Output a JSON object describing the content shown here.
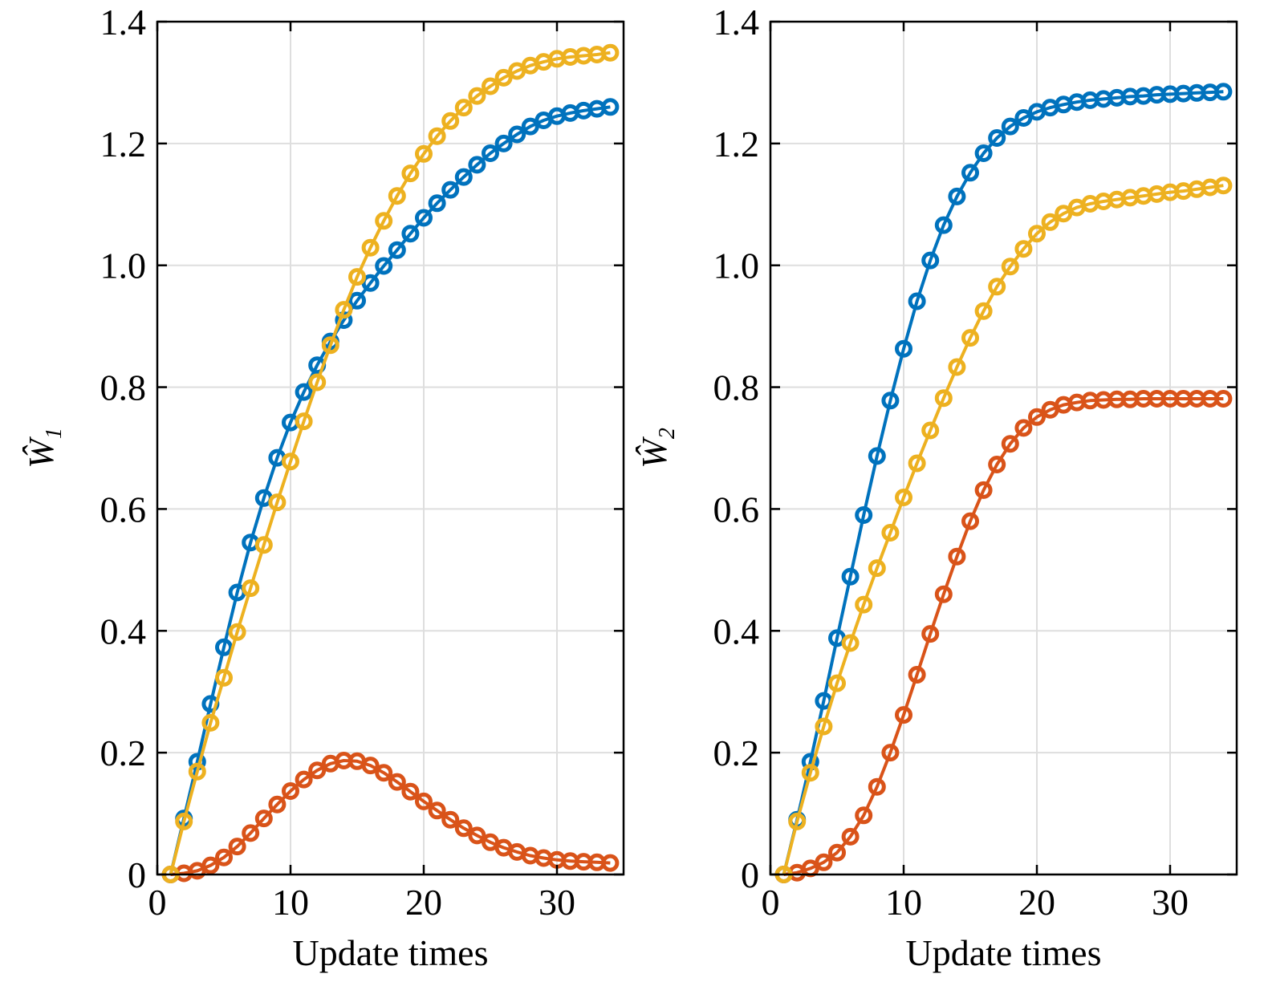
{
  "chart_data": [
    {
      "type": "line",
      "xlabel": "Update times",
      "ylabel": {
        "symbol": "Ŵ",
        "subscript": "1"
      },
      "xlim": [
        0,
        35
      ],
      "ylim": [
        0,
        1.4
      ],
      "xticks": [
        "0",
        "10",
        "20",
        "30"
      ],
      "yticks": [
        "0",
        "0.2",
        "0.4",
        "0.6",
        "0.8",
        "1.0",
        "1.2",
        "1.4"
      ],
      "grid": true,
      "markers": "open-circle",
      "series": [
        {
          "color": "#0072BD",
          "x": [
            1,
            2,
            3,
            4,
            5,
            6,
            7,
            8,
            9,
            10,
            11,
            12,
            13,
            14,
            15,
            16,
            17,
            18,
            19,
            20,
            21,
            22,
            23,
            24,
            25,
            26,
            27,
            28,
            29,
            30,
            31,
            32,
            33,
            34
          ],
          "values": [
            0,
            0.092,
            0.185,
            0.28,
            0.373,
            0.463,
            0.545,
            0.618,
            0.684,
            0.742,
            0.792,
            0.836,
            0.875,
            0.91,
            0.942,
            0.971,
            0.999,
            1.025,
            1.052,
            1.078,
            1.102,
            1.124,
            1.145,
            1.165,
            1.184,
            1.2,
            1.215,
            1.228,
            1.238,
            1.245,
            1.25,
            1.254,
            1.257,
            1.26
          ]
        },
        {
          "color": "#D95319",
          "x": [
            1,
            2,
            3,
            4,
            5,
            6,
            7,
            8,
            9,
            10,
            11,
            12,
            13,
            14,
            15,
            16,
            17,
            18,
            19,
            20,
            21,
            22,
            23,
            24,
            25,
            26,
            27,
            28,
            29,
            30,
            31,
            32,
            33,
            34
          ],
          "values": [
            0,
            0.002,
            0.006,
            0.015,
            0.028,
            0.046,
            0.068,
            0.092,
            0.115,
            0.137,
            0.156,
            0.171,
            0.182,
            0.187,
            0.186,
            0.179,
            0.167,
            0.152,
            0.136,
            0.12,
            0.105,
            0.09,
            0.076,
            0.064,
            0.053,
            0.044,
            0.037,
            0.031,
            0.027,
            0.024,
            0.022,
            0.021,
            0.02,
            0.019
          ]
        },
        {
          "color": "#EDB120",
          "x": [
            1,
            2,
            3,
            4,
            5,
            6,
            7,
            8,
            9,
            10,
            11,
            12,
            13,
            14,
            15,
            16,
            17,
            18,
            19,
            20,
            21,
            22,
            23,
            24,
            25,
            26,
            27,
            28,
            29,
            30,
            31,
            32,
            33,
            34
          ],
          "values": [
            0,
            0.087,
            0.169,
            0.249,
            0.323,
            0.398,
            0.47,
            0.541,
            0.611,
            0.678,
            0.744,
            0.808,
            0.869,
            0.927,
            0.981,
            1.029,
            1.073,
            1.114,
            1.151,
            1.183,
            1.212,
            1.237,
            1.259,
            1.278,
            1.294,
            1.308,
            1.319,
            1.328,
            1.334,
            1.339,
            1.342,
            1.344,
            1.346,
            1.349
          ]
        }
      ]
    },
    {
      "type": "line",
      "xlabel": "Update times",
      "ylabel": {
        "symbol": "Ŵ",
        "subscript": "2"
      },
      "xlim": [
        0,
        35
      ],
      "ylim": [
        0,
        1.4
      ],
      "xticks": [
        "0",
        "10",
        "20",
        "30"
      ],
      "yticks": [
        "0",
        "0.2",
        "0.4",
        "0.6",
        "0.8",
        "1.0",
        "1.2",
        "1.4"
      ],
      "grid": true,
      "markers": "open-circle",
      "series": [
        {
          "color": "#0072BD",
          "x": [
            1,
            2,
            3,
            4,
            5,
            6,
            7,
            8,
            9,
            10,
            11,
            12,
            13,
            14,
            15,
            16,
            17,
            18,
            19,
            20,
            21,
            22,
            23,
            24,
            25,
            26,
            27,
            28,
            29,
            30,
            31,
            32,
            33,
            34
          ],
          "values": [
            0,
            0.09,
            0.185,
            0.285,
            0.388,
            0.489,
            0.59,
            0.687,
            0.778,
            0.863,
            0.941,
            1.008,
            1.066,
            1.113,
            1.152,
            1.184,
            1.209,
            1.228,
            1.242,
            1.252,
            1.259,
            1.264,
            1.268,
            1.271,
            1.273,
            1.275,
            1.277,
            1.278,
            1.28,
            1.281,
            1.282,
            1.283,
            1.284,
            1.285
          ]
        },
        {
          "color": "#D95319",
          "x": [
            1,
            2,
            3,
            4,
            5,
            6,
            7,
            8,
            9,
            10,
            11,
            12,
            13,
            14,
            15,
            16,
            17,
            18,
            19,
            20,
            21,
            22,
            23,
            24,
            25,
            26,
            27,
            28,
            29,
            30,
            31,
            32,
            33,
            34
          ],
          "values": [
            0,
            0.003,
            0.01,
            0.02,
            0.036,
            0.062,
            0.097,
            0.144,
            0.2,
            0.262,
            0.328,
            0.395,
            0.46,
            0.522,
            0.58,
            0.631,
            0.673,
            0.707,
            0.733,
            0.751,
            0.763,
            0.771,
            0.775,
            0.778,
            0.779,
            0.78,
            0.78,
            0.781,
            0.781,
            0.781,
            0.781,
            0.781,
            0.781,
            0.781
          ]
        },
        {
          "color": "#EDB120",
          "x": [
            1,
            2,
            3,
            4,
            5,
            6,
            7,
            8,
            9,
            10,
            11,
            12,
            13,
            14,
            15,
            16,
            17,
            18,
            19,
            20,
            21,
            22,
            23,
            24,
            25,
            26,
            27,
            28,
            29,
            30,
            31,
            32,
            33,
            34
          ],
          "values": [
            0,
            0.087,
            0.167,
            0.243,
            0.314,
            0.38,
            0.443,
            0.503,
            0.561,
            0.619,
            0.675,
            0.729,
            0.782,
            0.833,
            0.881,
            0.925,
            0.965,
            0.998,
            1.027,
            1.052,
            1.071,
            1.085,
            1.095,
            1.101,
            1.105,
            1.108,
            1.111,
            1.114,
            1.117,
            1.12,
            1.122,
            1.125,
            1.128,
            1.131
          ]
        }
      ]
    }
  ]
}
